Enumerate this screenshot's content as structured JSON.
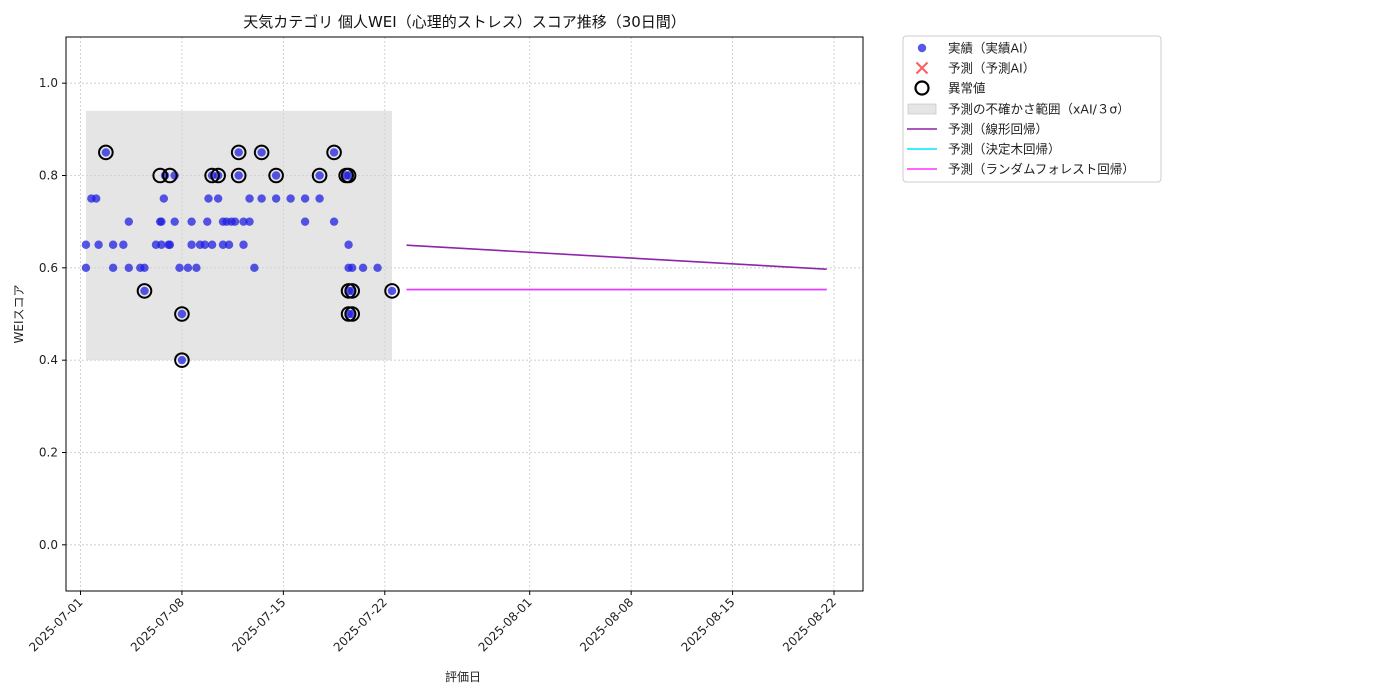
{
  "chart_data": {
    "type": "scatter",
    "title": "天気カテゴリ 個人WEI（心理的ストレス）スコア推移（30日間）",
    "xlabel": "評価日",
    "ylabel": "WEIスコア",
    "xlim": [
      "2025-06-30",
      "2025-08-24"
    ],
    "ylim": [
      -0.1,
      1.1
    ],
    "y_ticks": [
      "0.0",
      "0.2",
      "0.4",
      "0.6",
      "0.8",
      "1.0"
    ],
    "x_ticks": [
      "2025-07-01",
      "2025-07-08",
      "2025-07-15",
      "2025-07-22",
      "2025-08-01",
      "2025-08-08",
      "2025-08-15",
      "2025-08-22"
    ],
    "grid": true,
    "legend_position": "outside-top-right",
    "colors": {
      "actual": "#1f1fe0",
      "forecast_marker": "#ff3333",
      "anomaly": "#000000",
      "band": "#d3d3d3",
      "linear": "#8e24aa",
      "tree": "#00e5ff",
      "forest": "#ff33ff"
    },
    "legend": [
      {
        "key": "actual",
        "label": "実績（実績AI）"
      },
      {
        "key": "forecast",
        "label": "予測（予測AI）"
      },
      {
        "key": "anomaly",
        "label": "異常値"
      },
      {
        "key": "band",
        "label": "予測の不確かさ範囲（xAI/３σ）"
      },
      {
        "key": "linear",
        "label": "予測（線形回帰）"
      },
      {
        "key": "tree",
        "label": "予測（決定木回帰）"
      },
      {
        "key": "forest",
        "label": "予測（ランダムフォレスト回帰）"
      }
    ],
    "uncertainty_band": {
      "x_start": "2025-07-01 09:00",
      "x_end": "2025-07-22 12:00",
      "y_low": 0.4,
      "y_high": 0.94
    },
    "actual_points": [
      [
        "2025-07-01 09:00",
        0.65
      ],
      [
        "2025-07-01 09:00",
        0.6
      ],
      [
        "2025-07-01 18:00",
        0.75
      ],
      [
        "2025-07-02 02:00",
        0.75
      ],
      [
        "2025-07-02 06:00",
        0.65
      ],
      [
        "2025-07-02 18:00",
        0.85
      ],
      [
        "2025-07-03 06:00",
        0.6
      ],
      [
        "2025-07-03 06:00",
        0.65
      ],
      [
        "2025-07-03 23:00",
        0.65
      ],
      [
        "2025-07-04 08:00",
        0.7
      ],
      [
        "2025-07-04 08:00",
        0.6
      ],
      [
        "2025-07-05 03:00",
        0.6
      ],
      [
        "2025-07-05 10:00",
        0.55
      ],
      [
        "2025-07-05 10:00",
        0.6
      ],
      [
        "2025-07-06 05:00",
        0.65
      ],
      [
        "2025-07-06 12:00",
        0.7
      ],
      [
        "2025-07-06 14:00",
        0.7
      ],
      [
        "2025-07-06 14:00",
        0.65
      ],
      [
        "2025-07-06 18:00",
        0.75
      ],
      [
        "2025-07-06 20:00",
        0.8
      ],
      [
        "2025-07-07 02:00",
        0.65
      ],
      [
        "2025-07-07 04:00",
        0.65
      ],
      [
        "2025-07-07 12:00",
        0.7
      ],
      [
        "2025-07-07 12:00",
        0.8
      ],
      [
        "2025-07-07 20:00",
        0.6
      ],
      [
        "2025-07-08 00:00",
        0.5
      ],
      [
        "2025-07-08 00:00",
        0.4
      ],
      [
        "2025-07-08 10:00",
        0.6
      ],
      [
        "2025-07-08 16:00",
        0.7
      ],
      [
        "2025-07-08 16:00",
        0.65
      ],
      [
        "2025-07-09 00:00",
        0.6
      ],
      [
        "2025-07-09 06:00",
        0.65
      ],
      [
        "2025-07-09 14:00",
        0.65
      ],
      [
        "2025-07-09 18:00",
        0.7
      ],
      [
        "2025-07-09 20:00",
        0.75
      ],
      [
        "2025-07-10 02:00",
        0.8
      ],
      [
        "2025-07-10 02:00",
        0.65
      ],
      [
        "2025-07-10 12:00",
        0.75
      ],
      [
        "2025-07-10 12:00",
        0.8
      ],
      [
        "2025-07-10 20:00",
        0.7
      ],
      [
        "2025-07-10 20:00",
        0.65
      ],
      [
        "2025-07-11 02:00",
        0.7
      ],
      [
        "2025-07-11 06:00",
        0.65
      ],
      [
        "2025-07-11 10:00",
        0.7
      ],
      [
        "2025-07-11 16:00",
        0.7
      ],
      [
        "2025-07-11 22:00",
        0.85
      ],
      [
        "2025-07-11 22:00",
        0.8
      ],
      [
        "2025-07-12 06:00",
        0.7
      ],
      [
        "2025-07-12 06:00",
        0.65
      ],
      [
        "2025-07-12 16:00",
        0.7
      ],
      [
        "2025-07-12 16:00",
        0.75
      ],
      [
        "2025-07-13 00:00",
        0.6
      ],
      [
        "2025-07-13 12:00",
        0.85
      ],
      [
        "2025-07-13 12:00",
        0.75
      ],
      [
        "2025-07-14 12:00",
        0.8
      ],
      [
        "2025-07-14 12:00",
        0.75
      ],
      [
        "2025-07-15 12:00",
        0.75
      ],
      [
        "2025-07-16 12:00",
        0.7
      ],
      [
        "2025-07-16 12:00",
        0.75
      ],
      [
        "2025-07-17 12:00",
        0.8
      ],
      [
        "2025-07-17 12:00",
        0.75
      ],
      [
        "2025-07-18 12:00",
        0.85
      ],
      [
        "2025-07-18 12:00",
        0.7
      ],
      [
        "2025-07-19 08:00",
        0.8
      ],
      [
        "2025-07-19 12:00",
        0.8
      ],
      [
        "2025-07-19 12:00",
        0.65
      ],
      [
        "2025-07-19 12:00",
        0.6
      ],
      [
        "2025-07-19 12:00",
        0.55
      ],
      [
        "2025-07-19 12:00",
        0.5
      ],
      [
        "2025-07-19 18:00",
        0.6
      ],
      [
        "2025-07-19 18:00",
        0.55
      ],
      [
        "2025-07-19 18:00",
        0.5
      ],
      [
        "2025-07-20 12:00",
        0.6
      ],
      [
        "2025-07-21 12:00",
        0.6
      ],
      [
        "2025-07-22 12:00",
        0.55
      ]
    ],
    "anomaly_points": [
      [
        "2025-07-02 18:00",
        0.85
      ],
      [
        "2025-07-05 10:00",
        0.55
      ],
      [
        "2025-07-06 12:00",
        0.8
      ],
      [
        "2025-07-07 04:00",
        0.8
      ],
      [
        "2025-07-08 00:00",
        0.5
      ],
      [
        "2025-07-08 00:00",
        0.4
      ],
      [
        "2025-07-10 02:00",
        0.8
      ],
      [
        "2025-07-10 12:00",
        0.8
      ],
      [
        "2025-07-11 22:00",
        0.85
      ],
      [
        "2025-07-11 22:00",
        0.8
      ],
      [
        "2025-07-13 12:00",
        0.85
      ],
      [
        "2025-07-14 12:00",
        0.8
      ],
      [
        "2025-07-17 12:00",
        0.8
      ],
      [
        "2025-07-18 12:00",
        0.85
      ],
      [
        "2025-07-19 08:00",
        0.8
      ],
      [
        "2025-07-19 12:00",
        0.8
      ],
      [
        "2025-07-19 12:00",
        0.55
      ],
      [
        "2025-07-19 12:00",
        0.5
      ],
      [
        "2025-07-19 18:00",
        0.55
      ],
      [
        "2025-07-19 18:00",
        0.5
      ],
      [
        "2025-07-22 12:00",
        0.55
      ]
    ],
    "forecast_lines": [
      {
        "key": "linear",
        "x": [
          "2025-07-23 12:00",
          "2025-08-21 12:00"
        ],
        "y": [
          0.649,
          0.597
        ]
      },
      {
        "key": "tree",
        "x": [
          "2025-07-23 12:00",
          "2025-08-21 12:00"
        ],
        "y": [
          0.553,
          0.553
        ]
      },
      {
        "key": "forest",
        "x": [
          "2025-07-23 12:00",
          "2025-08-21 12:00"
        ],
        "y": [
          0.553,
          0.553
        ]
      }
    ]
  }
}
